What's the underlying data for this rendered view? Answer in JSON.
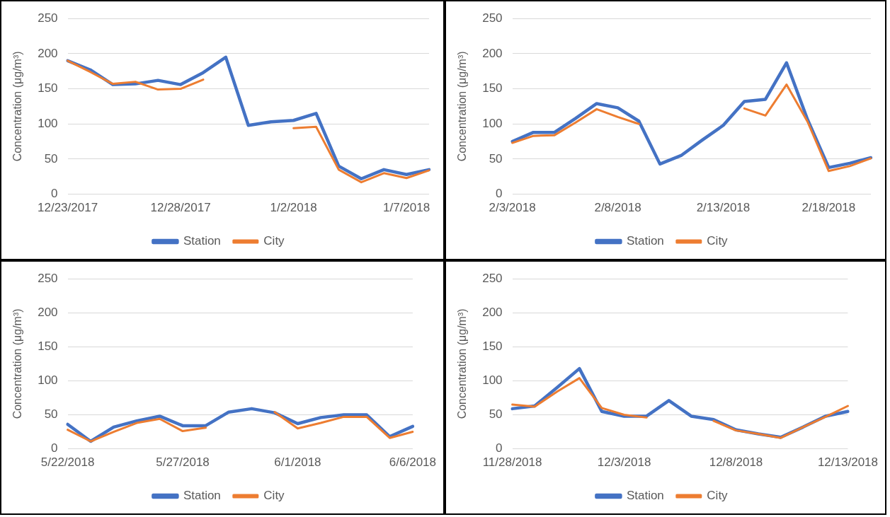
{
  "chart_data": [
    {
      "type": "line",
      "ylabel": "Concentration (μg/m³)",
      "categories": [
        "12/23/2017",
        null,
        null,
        null,
        null,
        "12/28/2017",
        null,
        null,
        null,
        null,
        "1/2/2018",
        null,
        null,
        null,
        null,
        "1/7/2018",
        null
      ],
      "ylim": [
        0,
        250
      ],
      "yticks": [
        0,
        50,
        100,
        150,
        200,
        250
      ],
      "grid": "y",
      "legend": "bottom",
      "series": [
        {
          "name": "Station",
          "color": "#4472c4",
          "values": [
            190,
            177,
            156,
            157,
            162,
            156,
            173,
            195,
            98,
            103,
            105,
            115,
            40,
            22,
            35,
            28,
            35
          ]
        },
        {
          "name": "City",
          "color": "#ed7d31",
          "values": [
            190,
            174,
            157,
            160,
            149,
            150,
            163,
            null,
            null,
            null,
            94,
            96,
            35,
            17,
            30,
            23,
            34
          ]
        }
      ]
    },
    {
      "type": "line",
      "ylabel": "Concentration (μg/m³)",
      "categories": [
        "2/3/2018",
        null,
        null,
        null,
        null,
        "2/8/2018",
        null,
        null,
        null,
        null,
        "2/13/2018",
        null,
        null,
        null,
        null,
        "2/18/2018",
        null,
        null
      ],
      "ylim": [
        0,
        250
      ],
      "yticks": [
        0,
        50,
        100,
        150,
        200,
        250
      ],
      "grid": "y",
      "legend": "bottom",
      "series": [
        {
          "name": "Station",
          "color": "#4472c4",
          "values": [
            75,
            88,
            88,
            108,
            129,
            123,
            104,
            43,
            55,
            77,
            98,
            132,
            135,
            187,
            106,
            38,
            44,
            52
          ]
        },
        {
          "name": "City",
          "color": "#ed7d31",
          "values": [
            73,
            83,
            84,
            102,
            121,
            110,
            100,
            null,
            null,
            null,
            null,
            122,
            112,
            156,
            103,
            33,
            40,
            51
          ]
        }
      ]
    },
    {
      "type": "line",
      "ylabel": "Concentration (μg/m³)",
      "categories": [
        "5/22/2018",
        null,
        null,
        null,
        null,
        "5/27/2018",
        null,
        null,
        null,
        null,
        "6/1/2018",
        null,
        null,
        null,
        null,
        "6/6/2018"
      ],
      "ylim": [
        0,
        250
      ],
      "yticks": [
        0,
        50,
        100,
        150,
        200,
        250
      ],
      "grid": "y",
      "legend": "bottom",
      "series": [
        {
          "name": "Station",
          "color": "#4472c4",
          "values": [
            36,
            11,
            32,
            41,
            48,
            34,
            34,
            54,
            59,
            53,
            37,
            46,
            50,
            50,
            18,
            33
          ]
        },
        {
          "name": "City",
          "color": "#ed7d31",
          "values": [
            28,
            11,
            25,
            38,
            44,
            26,
            31,
            null,
            null,
            54,
            30,
            38,
            47,
            47,
            16,
            25
          ]
        }
      ]
    },
    {
      "type": "line",
      "ylabel": "Concentration (μg/m³)",
      "categories": [
        "11/28/2018",
        null,
        null,
        null,
        null,
        "12/3/2018",
        null,
        null,
        null,
        null,
        "12/8/2018",
        null,
        null,
        null,
        null,
        "12/13/2018"
      ],
      "ylim": [
        0,
        250
      ],
      "yticks": [
        0,
        50,
        100,
        150,
        200,
        250
      ],
      "grid": "y",
      "legend": "bottom",
      "series": [
        {
          "name": "Station",
          "color": "#4472c4",
          "values": [
            59,
            63,
            90,
            118,
            55,
            48,
            48,
            71,
            48,
            43,
            28,
            22,
            17,
            32,
            48,
            55
          ]
        },
        {
          "name": "City",
          "color": "#ed7d31",
          "values": [
            65,
            62,
            84,
            104,
            60,
            50,
            46,
            null,
            null,
            41,
            27,
            22,
            16,
            32,
            47,
            63
          ]
        }
      ]
    }
  ]
}
